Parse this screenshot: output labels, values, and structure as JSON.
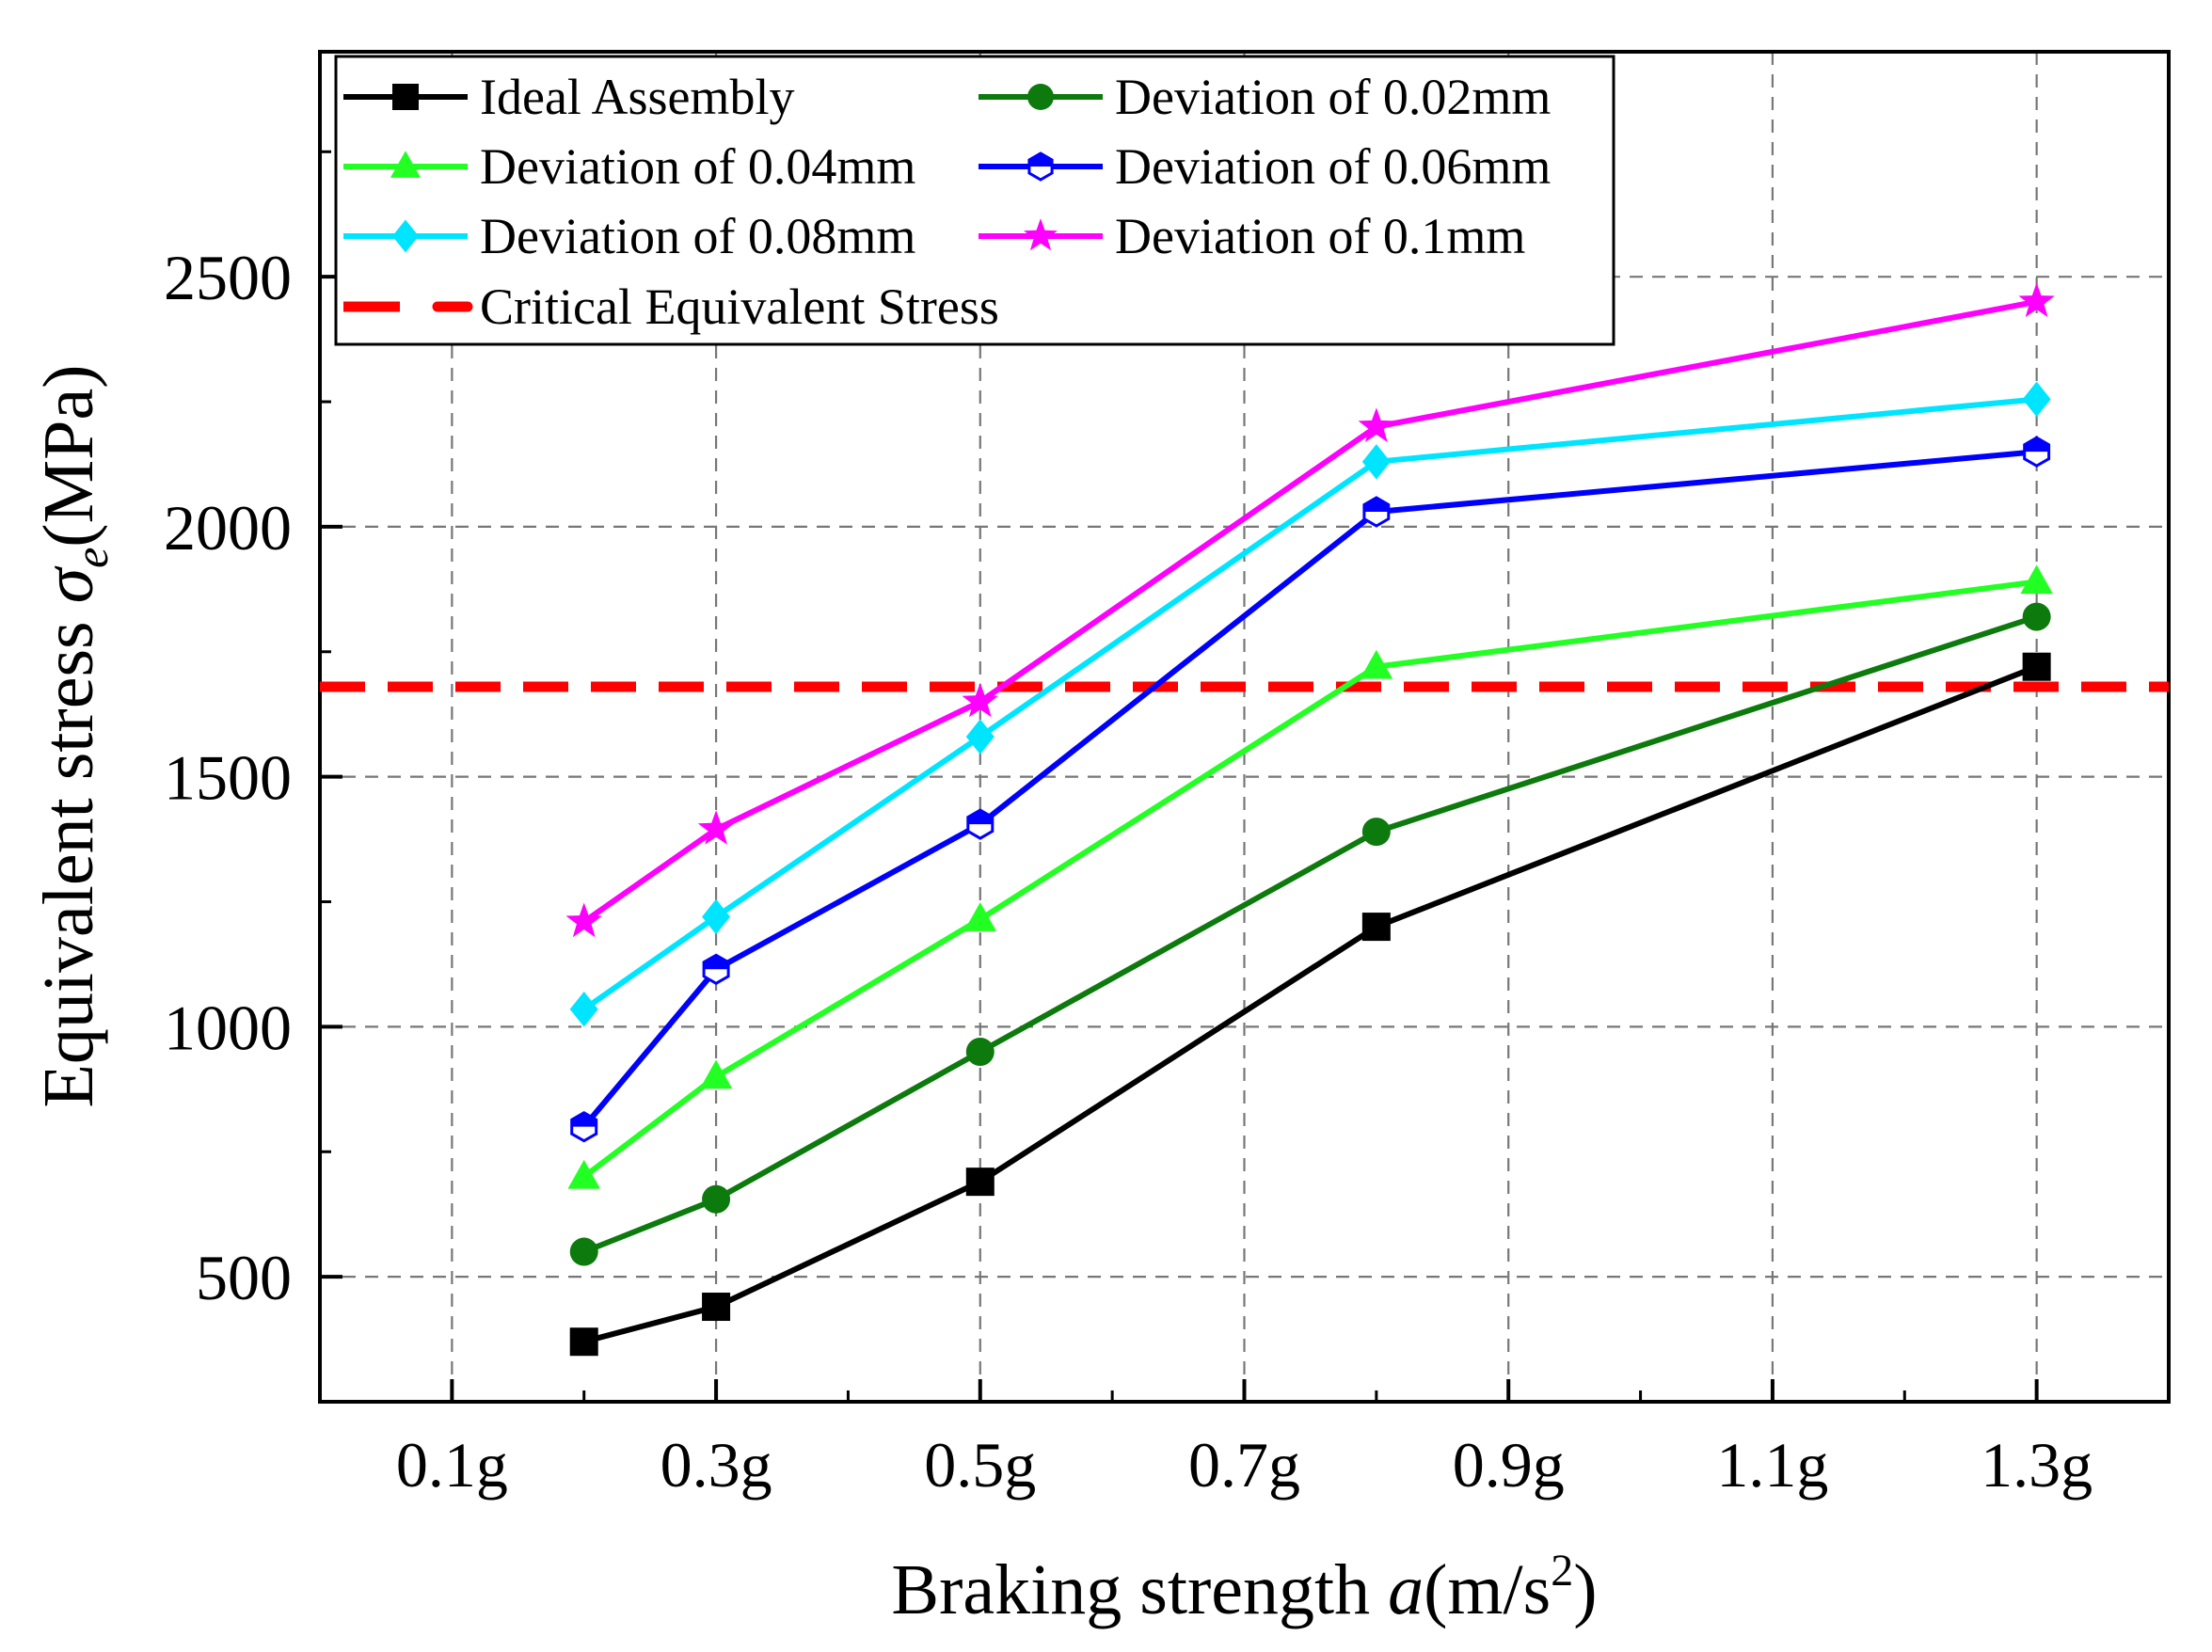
{
  "chart_data": {
    "type": "line",
    "xlabel": {
      "text": "Braking strength ",
      "var": "a",
      "unit_pre": "(m/s",
      "unit_sup": "2",
      "unit_post": ")"
    },
    "ylabel": {
      "text": "Equivalent stress ",
      "var": "σ",
      "sub": "e",
      "unit": "(MPa)"
    },
    "x_tick_values": [
      0.1,
      0.3,
      0.5,
      0.7,
      0.9,
      1.1,
      1.3
    ],
    "x_tick_labels": [
      "0.1g",
      "0.3g",
      "0.5g",
      "0.7g",
      "0.9g",
      "1.1g",
      "1.3g"
    ],
    "xlim": [
      0.0,
      1.4
    ],
    "y_ticks": [
      500,
      1000,
      1500,
      2000,
      2500
    ],
    "ylim": [
      250,
      2950
    ],
    "grid": true,
    "legend_position": "top-left",
    "x": [
      0.2,
      0.3,
      0.5,
      0.8,
      1.3
    ],
    "series": [
      {
        "name": "Ideal Assembly",
        "color": "#000000",
        "marker": "square",
        "values": [
          370,
          440,
          690,
          1200,
          1720
        ]
      },
      {
        "name": "Deviation of 0.02mm",
        "color": "#0d7a0d",
        "marker": "circle",
        "values": [
          550,
          655,
          950,
          1390,
          1820
        ]
      },
      {
        "name": "Deviation of 0.04mm",
        "color": "#22ff22",
        "marker": "triangle",
        "values": [
          700,
          900,
          1215,
          1720,
          1890
        ]
      },
      {
        "name": "Deviation of 0.06mm",
        "color": "#0000ff",
        "marker": "hexagon",
        "values": [
          800,
          1115,
          1405,
          2030,
          2150
        ]
      },
      {
        "name": "Deviation of 0.08mm",
        "color": "#00e5ff",
        "marker": "diamond",
        "values": [
          1035,
          1220,
          1580,
          2130,
          2255
        ]
      },
      {
        "name": "Deviation of 0.1mm",
        "color": "#ff00ff",
        "marker": "star",
        "values": [
          1210,
          1395,
          1650,
          2200,
          2450
        ]
      }
    ],
    "reference_line": {
      "name": "Critical Equivalent Stress",
      "y": 1680,
      "color": "#ff0000",
      "style": "dashed"
    }
  }
}
